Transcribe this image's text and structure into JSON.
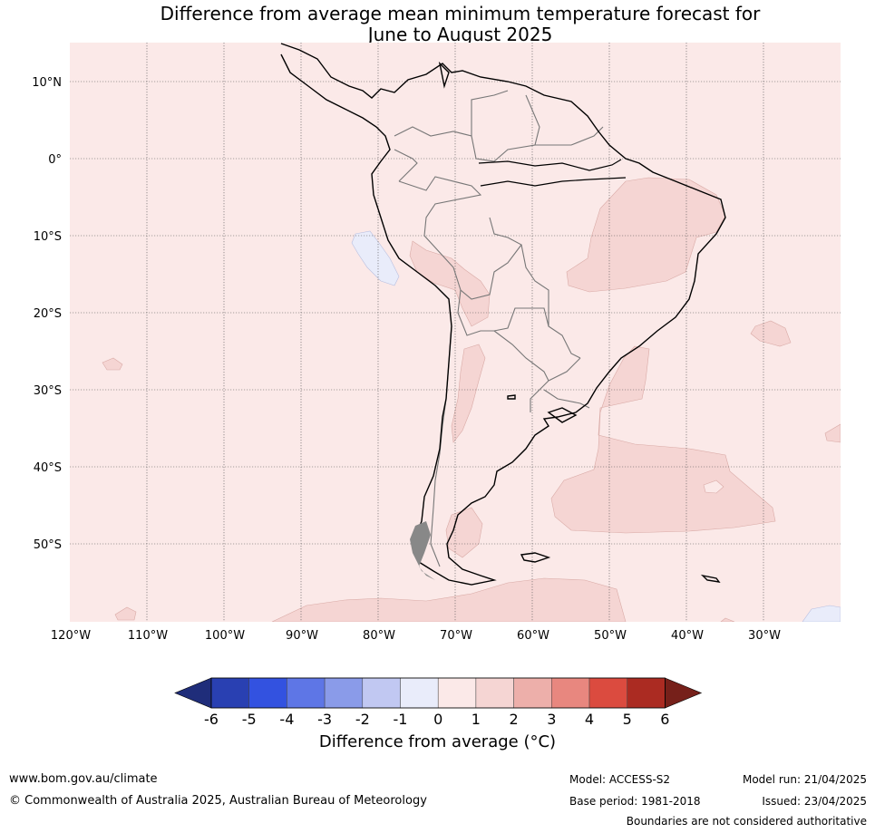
{
  "title": {
    "line1": "Difference from average mean minimum temperature forecast for",
    "line2": "June to August 2025"
  },
  "map": {
    "region": "South America",
    "lon_range": [
      -120,
      -20
    ],
    "lat_range": [
      -60,
      15
    ],
    "lat_ticks": [
      "10°N",
      "0°",
      "10°S",
      "20°S",
      "30°S",
      "40°S",
      "50°S"
    ],
    "lon_ticks": [
      "120°W",
      "110°W",
      "100°W",
      "90°W",
      "80°W",
      "70°W",
      "60°W",
      "50°W",
      "40°W",
      "30°W"
    ],
    "background_class": "0 to 1",
    "background_color": "#fbe9e8",
    "anomaly_1_to_2_color": "#f5d5d3",
    "anomaly_minus1_to_0_color": "#e9ecfa"
  },
  "colorbar": {
    "ticks": [
      "-6",
      "-5",
      "-4",
      "-3",
      "-2",
      "-1",
      "0",
      "1",
      "2",
      "3",
      "4",
      "5",
      "6"
    ],
    "colors": [
      "#1f2d7a",
      "#2940b2",
      "#3352e0",
      "#5e76e6",
      "#8a9be9",
      "#c1c8f2",
      "#e9ecfa",
      "#fbe9e8",
      "#f5d5d3",
      "#edafaa",
      "#e8877f",
      "#db4b3f",
      "#ab2b22",
      "#76201a"
    ],
    "label": "Difference from average (",
    "unit": "°C",
    "label_end": ")"
  },
  "footer": {
    "url": "www.bom.gov.au/climate",
    "copyright": "© Commonwealth of Australia 2025, Australian Bureau of Meteorology",
    "model": "Model: ACCESS-S2",
    "base_period": "Base period: 1981-2018",
    "model_run": "Model run: 21/04/2025",
    "issued": "Issued: 23/04/2025",
    "disclaimer": "Boundaries are not considered authoritative"
  }
}
